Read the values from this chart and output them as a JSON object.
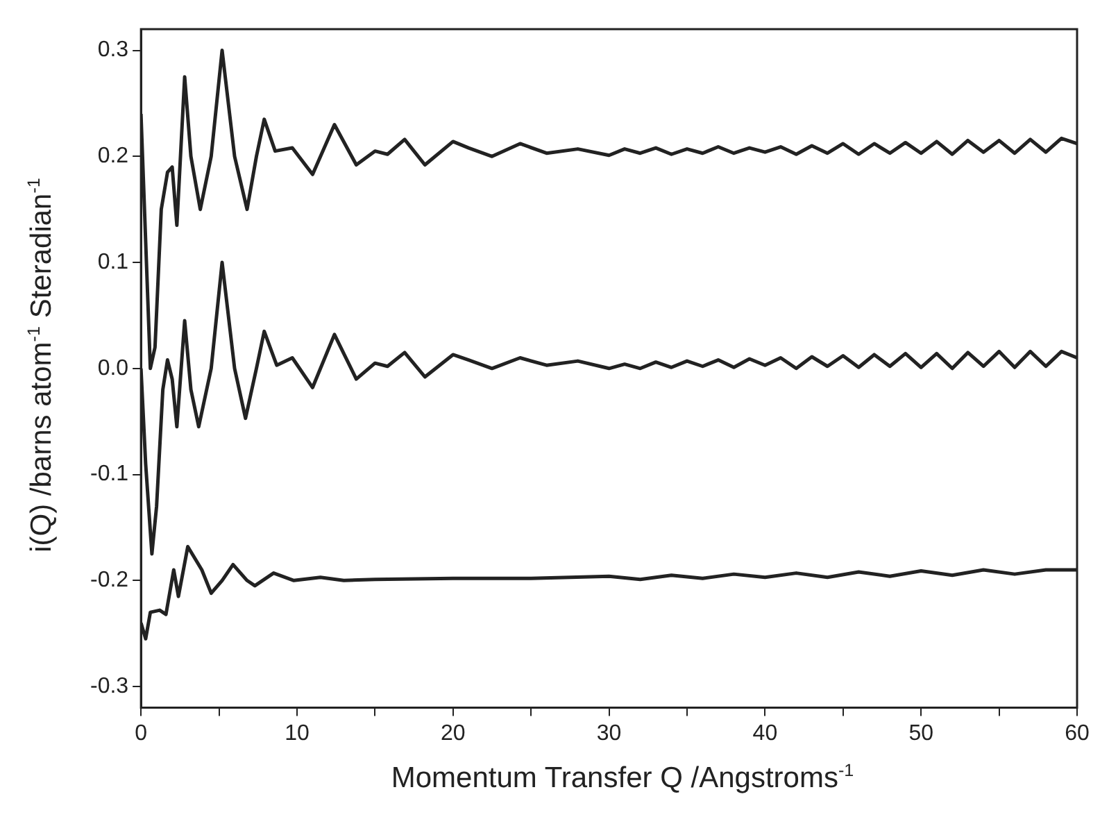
{
  "chart_data": {
    "type": "line",
    "xlabel": "Momentum Transfer Q /Angstroms$^{-1}$",
    "ylabel": "i(Q) /barns atom$^{-1}$ Steradian$^{-1}$",
    "xlim": [
      0,
      60
    ],
    "xticks": [
      0,
      {
        "value": 5,
        "label": null
      },
      10,
      {
        "value": 15,
        "label": null
      },
      20,
      {
        "value": 25,
        "label": null
      },
      30,
      {
        "value": 35,
        "label": null
      },
      40,
      {
        "value": 45,
        "label": null
      },
      50,
      {
        "value": 55,
        "label": null
      },
      60
    ],
    "ylim": [
      -0.32,
      0.32
    ],
    "yticks": [
      -0.3,
      -0.2,
      -0.1,
      {
        "value": 0,
        "label": "0.0"
      },
      0.1,
      0.2,
      0.3
    ],
    "grid": false,
    "legend": false,
    "marker": "none",
    "line_style": "solid",
    "series": [
      {
        "color": "#222222",
        "x": [
          0,
          0.3,
          0.6,
          0.9,
          1.3,
          1.7,
          2.0,
          2.3,
          2.8,
          3.2,
          3.8,
          4.5,
          5.2,
          6.0,
          6.8,
          7.4,
          7.9,
          8.6,
          9.7,
          11.0,
          12.4,
          13.8,
          15.0,
          15.8,
          16.9,
          18.2,
          20,
          21,
          22.5,
          24.3,
          26,
          28,
          30,
          31,
          32,
          33,
          34,
          35,
          36,
          37,
          38,
          39,
          40,
          41,
          42,
          43,
          44,
          45,
          46,
          47,
          48,
          49,
          50,
          51,
          52,
          53,
          54,
          55,
          56,
          57,
          58,
          59,
          60
        ],
        "values": [
          0.24,
          0.12,
          0.0,
          0.02,
          0.15,
          0.185,
          0.19,
          0.135,
          0.275,
          0.2,
          0.15,
          0.2,
          0.3,
          0.2,
          0.15,
          0.2,
          0.235,
          0.205,
          0.208,
          0.183,
          0.23,
          0.192,
          0.205,
          0.202,
          0.216,
          0.192,
          0.214,
          0.208,
          0.2,
          0.212,
          0.203,
          0.207,
          0.201,
          0.207,
          0.203,
          0.208,
          0.202,
          0.207,
          0.203,
          0.209,
          0.203,
          0.208,
          0.204,
          0.209,
          0.202,
          0.21,
          0.203,
          0.212,
          0.202,
          0.212,
          0.203,
          0.213,
          0.203,
          0.214,
          0.202,
          0.215,
          0.204,
          0.215,
          0.203,
          0.216,
          0.204,
          0.217,
          0.212
        ]
      },
      {
        "color": "#222222",
        "x": [
          0,
          0.3,
          0.7,
          1.0,
          1.4,
          1.7,
          2.0,
          2.3,
          2.8,
          3.2,
          3.7,
          4.5,
          5.2,
          6.0,
          6.7,
          7.4,
          7.9,
          8.7,
          9.7,
          11.0,
          12.4,
          13.8,
          15.0,
          15.8,
          16.9,
          18.2,
          20,
          21,
          22.5,
          24.3,
          26,
          28,
          30,
          31,
          32,
          33,
          34,
          35,
          36,
          37,
          38,
          39,
          40,
          41,
          42,
          43,
          44,
          45,
          46,
          47,
          48,
          49,
          50,
          51,
          52,
          53,
          54,
          55,
          56,
          57,
          58,
          59,
          60
        ],
        "values": [
          0.0,
          -0.09,
          -0.175,
          -0.13,
          -0.02,
          0.008,
          -0.01,
          -0.055,
          0.045,
          -0.02,
          -0.055,
          0.0,
          0.1,
          0.0,
          -0.047,
          0.0,
          0.035,
          0.003,
          0.01,
          -0.018,
          0.032,
          -0.01,
          0.005,
          0.002,
          0.015,
          -0.008,
          0.013,
          0.008,
          0.0,
          0.01,
          0.003,
          0.007,
          0.0,
          0.004,
          0.0,
          0.006,
          0.001,
          0.007,
          0.002,
          0.008,
          0.001,
          0.009,
          0.003,
          0.01,
          0.0,
          0.011,
          0.002,
          0.012,
          0.001,
          0.013,
          0.002,
          0.014,
          0.001,
          0.014,
          0.0,
          0.015,
          0.002,
          0.016,
          0.001,
          0.016,
          0.002,
          0.016,
          0.01
        ]
      },
      {
        "color": "#222222",
        "x": [
          0,
          0.3,
          0.6,
          1.2,
          1.6,
          2.1,
          2.4,
          3.0,
          3.9,
          4.5,
          5.2,
          5.9,
          6.8,
          7.3,
          8.5,
          9.8,
          11.5,
          13,
          15,
          20,
          25,
          30,
          32,
          34,
          36,
          38,
          40,
          42,
          44,
          46,
          48,
          50,
          52,
          54,
          56,
          58,
          60
        ],
        "values": [
          -0.24,
          -0.255,
          -0.23,
          -0.228,
          -0.232,
          -0.19,
          -0.215,
          -0.168,
          -0.19,
          -0.212,
          -0.2,
          -0.185,
          -0.2,
          -0.205,
          -0.193,
          -0.2,
          -0.197,
          -0.2,
          -0.199,
          -0.198,
          -0.198,
          -0.196,
          -0.199,
          -0.195,
          -0.198,
          -0.194,
          -0.197,
          -0.193,
          -0.197,
          -0.192,
          -0.196,
          -0.191,
          -0.195,
          -0.19,
          -0.194,
          -0.19,
          -0.19
        ]
      }
    ]
  }
}
